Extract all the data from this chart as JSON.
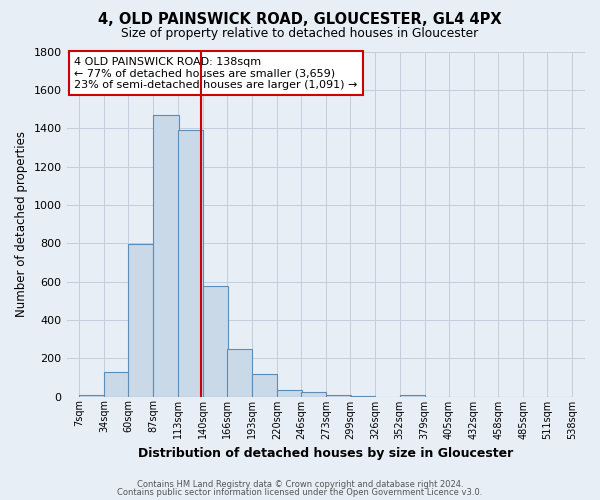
{
  "title": "4, OLD PAINSWICK ROAD, GLOUCESTER, GL4 4PX",
  "subtitle": "Size of property relative to detached houses in Gloucester",
  "xlabel": "Distribution of detached houses by size in Gloucester",
  "ylabel": "Number of detached properties",
  "bar_left_edges": [
    7,
    34,
    60,
    87,
    113,
    140,
    166,
    193,
    220,
    246,
    273,
    299,
    326,
    352,
    379,
    405,
    432,
    458,
    485,
    511
  ],
  "bar_heights": [
    10,
    130,
    795,
    1470,
    1390,
    575,
    248,
    120,
    35,
    22,
    8,
    5,
    0,
    10,
    0,
    0,
    0,
    0,
    0,
    0
  ],
  "bin_width": 27,
  "bar_facecolor": "#c9d9e8",
  "bar_edgecolor": "#5b8db8",
  "property_line_x": 138,
  "property_line_color": "#cc0000",
  "ylim": [
    0,
    1800
  ],
  "yticks": [
    0,
    200,
    400,
    600,
    800,
    1000,
    1200,
    1400,
    1600,
    1800
  ],
  "xtick_labels": [
    "7sqm",
    "34sqm",
    "60sqm",
    "87sqm",
    "113sqm",
    "140sqm",
    "166sqm",
    "193sqm",
    "220sqm",
    "246sqm",
    "273sqm",
    "299sqm",
    "326sqm",
    "352sqm",
    "379sqm",
    "405sqm",
    "432sqm",
    "458sqm",
    "485sqm",
    "511sqm",
    "538sqm"
  ],
  "xtick_positions": [
    7,
    34,
    60,
    87,
    113,
    140,
    166,
    193,
    220,
    246,
    273,
    299,
    326,
    352,
    379,
    405,
    432,
    458,
    485,
    511,
    538
  ],
  "annotation_text": "4 OLD PAINSWICK ROAD: 138sqm\n← 77% of detached houses are smaller (3,659)\n23% of semi-detached houses are larger (1,091) →",
  "annotation_box_edgecolor": "#cc0000",
  "annotation_box_facecolor": "#ffffff",
  "grid_color": "#c0cfdf",
  "background_color": "#e8eef5",
  "footer_line1": "Contains HM Land Registry data © Crown copyright and database right 2024.",
  "footer_line2": "Contains public sector information licensed under the Open Government Licence v3.0."
}
